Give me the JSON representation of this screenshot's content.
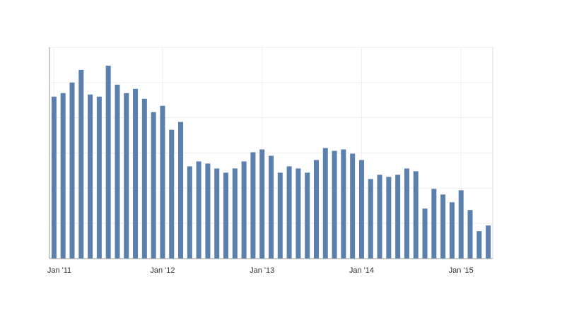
{
  "chart_data": {
    "type": "bar",
    "categories": [
      "Jan '11",
      null,
      null,
      null,
      null,
      null,
      null,
      null,
      null,
      null,
      null,
      null,
      "Jan '12",
      null,
      null,
      null,
      null,
      null,
      null,
      null,
      null,
      null,
      null,
      "Jan '13",
      null,
      null,
      null,
      null,
      null,
      null,
      null,
      null,
      null,
      null,
      "Jan '14",
      null,
      null,
      null,
      null,
      null,
      null,
      null,
      null,
      null,
      null,
      "Jan '15",
      null,
      null,
      null
    ],
    "values": [
      4.6,
      4.7,
      5.0,
      5.36,
      4.66,
      4.6,
      5.48,
      4.94,
      4.7,
      4.82,
      4.54,
      4.16,
      4.34,
      3.66,
      3.88,
      2.62,
      2.76,
      2.7,
      2.56,
      2.44,
      2.56,
      2.76,
      3.02,
      3.1,
      2.92,
      2.44,
      2.62,
      2.56,
      2.44,
      2.8,
      3.14,
      3.06,
      3.1,
      2.98,
      2.8,
      2.26,
      2.38,
      2.32,
      2.38,
      2.56,
      2.48,
      1.42,
      1.98,
      1.82,
      1.6,
      1.94,
      1.38,
      0.78,
      0.94
    ],
    "color": "#5b80ad",
    "ylim": [
      0,
      6
    ],
    "yticks": [
      0,
      1,
      2,
      3,
      4,
      5,
      6
    ],
    "grid": true
  }
}
